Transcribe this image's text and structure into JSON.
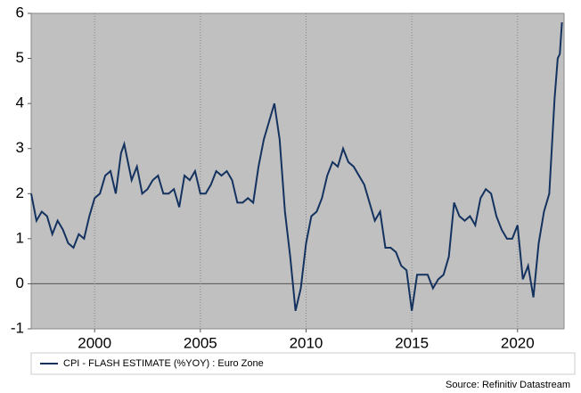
{
  "chart_data": {
    "type": "line",
    "x": [
      1997.0,
      1997.25,
      1997.5,
      1997.75,
      1998.0,
      1998.25,
      1998.5,
      1998.75,
      1999.0,
      1999.25,
      1999.5,
      1999.75,
      2000.0,
      2000.25,
      2000.5,
      2000.75,
      2001.0,
      2001.25,
      2001.4,
      2001.75,
      2002.0,
      2002.25,
      2002.5,
      2002.75,
      2003.0,
      2003.25,
      2003.5,
      2003.75,
      2004.0,
      2004.25,
      2004.5,
      2004.75,
      2005.0,
      2005.25,
      2005.5,
      2005.75,
      2006.0,
      2006.25,
      2006.5,
      2006.75,
      2007.0,
      2007.25,
      2007.5,
      2007.75,
      2008.0,
      2008.25,
      2008.5,
      2008.75,
      2009.0,
      2009.25,
      2009.5,
      2009.75,
      2010.0,
      2010.25,
      2010.5,
      2010.75,
      2011.0,
      2011.25,
      2011.5,
      2011.75,
      2012.0,
      2012.25,
      2012.5,
      2012.75,
      2013.0,
      2013.25,
      2013.5,
      2013.75,
      2014.0,
      2014.25,
      2014.5,
      2014.75,
      2015.0,
      2015.25,
      2015.5,
      2015.75,
      2016.0,
      2016.25,
      2016.5,
      2016.75,
      2017.0,
      2017.25,
      2017.5,
      2017.75,
      2018.0,
      2018.25,
      2018.5,
      2018.75,
      2019.0,
      2019.25,
      2019.5,
      2019.75,
      2020.0,
      2020.25,
      2020.5,
      2020.75,
      2021.0,
      2021.25,
      2021.5,
      2021.75,
      2021.9,
      2022.0,
      2022.1
    ],
    "series": [
      {
        "name": "CPI - FLASH ESTIMATE (%YOY) : Euro Zone",
        "color": "#14325f",
        "values": [
          2.0,
          1.4,
          1.6,
          1.5,
          1.1,
          1.4,
          1.2,
          0.9,
          0.8,
          1.1,
          1.0,
          1.5,
          1.9,
          2.0,
          2.4,
          2.5,
          2.0,
          2.9,
          3.1,
          2.3,
          2.6,
          2.0,
          2.1,
          2.3,
          2.4,
          2.0,
          2.0,
          2.1,
          1.7,
          2.4,
          2.3,
          2.5,
          2.0,
          2.0,
          2.2,
          2.5,
          2.4,
          2.5,
          2.3,
          1.8,
          1.8,
          1.9,
          1.8,
          2.6,
          3.2,
          3.6,
          4.0,
          3.2,
          1.6,
          0.6,
          -0.6,
          -0.1,
          0.9,
          1.5,
          1.6,
          1.9,
          2.4,
          2.7,
          2.6,
          3.0,
          2.7,
          2.6,
          2.4,
          2.2,
          1.8,
          1.4,
          1.6,
          0.8,
          0.8,
          0.7,
          0.4,
          0.3,
          -0.6,
          0.2,
          0.2,
          0.2,
          -0.1,
          0.1,
          0.2,
          0.6,
          1.8,
          1.5,
          1.4,
          1.5,
          1.3,
          1.9,
          2.1,
          2.0,
          1.5,
          1.2,
          1.0,
          1.0,
          1.3,
          0.1,
          0.4,
          -0.3,
          0.9,
          1.6,
          2.0,
          4.1,
          5.0,
          5.1,
          5.8
        ]
      }
    ],
    "xlim": [
      1997,
      2022.2
    ],
    "xticks": [
      2000,
      2005,
      2010,
      2015,
      2020
    ],
    "ylim": [
      -1,
      6
    ],
    "yticks": [
      -1,
      0,
      1,
      2,
      3,
      4,
      5,
      6
    ],
    "grid": true,
    "source": "Source: Refinitiv Datastream"
  }
}
